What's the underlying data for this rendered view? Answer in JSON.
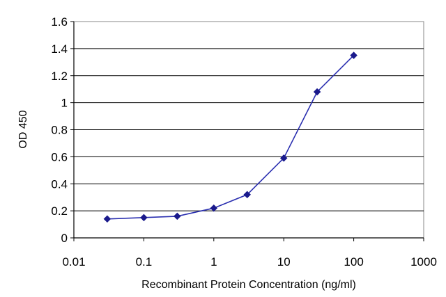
{
  "chart_data": {
    "type": "line",
    "x_scale": "log",
    "xlabel": "Recombinant Protein Concentration (ng/ml)",
    "ylabel": "OD 450",
    "xlim": [
      0.01,
      1000
    ],
    "ylim": [
      0,
      1.6
    ],
    "x_ticks": [
      "0.01",
      "0.1",
      "1",
      "10",
      "100",
      "1000"
    ],
    "y_ticks": [
      "0",
      "0.2",
      "0.4",
      "0.6",
      "0.8",
      "1",
      "1.2",
      "1.4",
      "1.6"
    ],
    "grid": "horizontal",
    "legend": "none",
    "series": [
      {
        "x": [
          0.03,
          0.1,
          0.3,
          1,
          3,
          10,
          30,
          100
        ],
        "y": [
          0.14,
          0.15,
          0.16,
          0.22,
          0.32,
          0.59,
          1.08,
          1.35
        ],
        "color": "#2a2fb0",
        "marker": "diamond",
        "marker_color": "#1a1a8c"
      }
    ]
  }
}
